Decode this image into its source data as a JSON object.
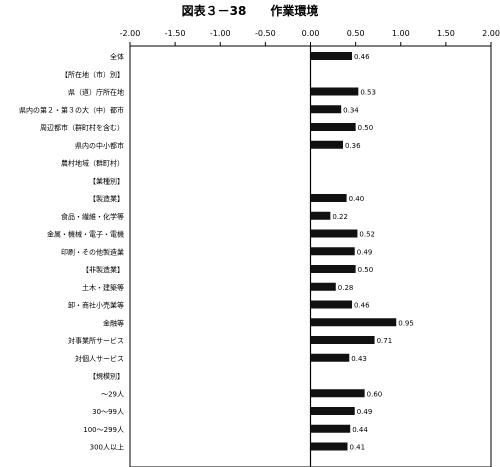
{
  "chart_data": {
    "type": "bar",
    "orientation": "horizontal",
    "title": "図表３－38　　作業環境",
    "xlim": [
      -2.0,
      2.0
    ],
    "ticks": [
      -2.0,
      -1.5,
      -1.0,
      -0.5,
      0.0,
      0.5,
      1.0,
      1.5,
      2.0
    ],
    "tick_labels": [
      "-2.00",
      "-1.50",
      "-1.00",
      "-0.50",
      "0.00",
      "0.50",
      "1.00",
      "1.50",
      "2.00"
    ],
    "grid": false,
    "legend": "none",
    "colors": {
      "bar": "#111111",
      "axis": "#000000",
      "frame": "#000000"
    },
    "categories": [
      "全体",
      "【所在地（市）別】",
      "県（道）庁所在地",
      "県内の第２・第３の大（中）都市",
      "周辺都市（群町村を含む）",
      "県内の中小都市",
      "農村地域（群町村）",
      "【業種別】",
      "【製造業】",
      "食品・繊維・化学等",
      "金属・機械・電子・電機",
      "印刷・その他製造業",
      "【非製造業】",
      "土木・建築等",
      "卸・商社小売業等",
      "金融等",
      "対事業所サービス",
      "対個人サービス",
      "【規模別】",
      "～29人",
      "30～99人",
      "100～299人",
      "300人以上"
    ],
    "values": [
      0.46,
      null,
      0.53,
      0.34,
      0.5,
      0.36,
      null,
      null,
      0.4,
      0.22,
      0.52,
      0.49,
      0.5,
      0.28,
      0.46,
      0.95,
      0.71,
      0.43,
      null,
      0.6,
      0.49,
      0.44,
      0.41
    ],
    "value_labels": [
      "0.46",
      "",
      "0.53",
      "0.34",
      "0.50",
      "0.36",
      "",
      "",
      "0.40",
      "0.22",
      "0.52",
      "0.49",
      "0.50",
      "0.28",
      "0.46",
      "0.95",
      "0.71",
      "0.43",
      "",
      "0.60",
      "0.49",
      "0.44",
      "0.41"
    ]
  }
}
